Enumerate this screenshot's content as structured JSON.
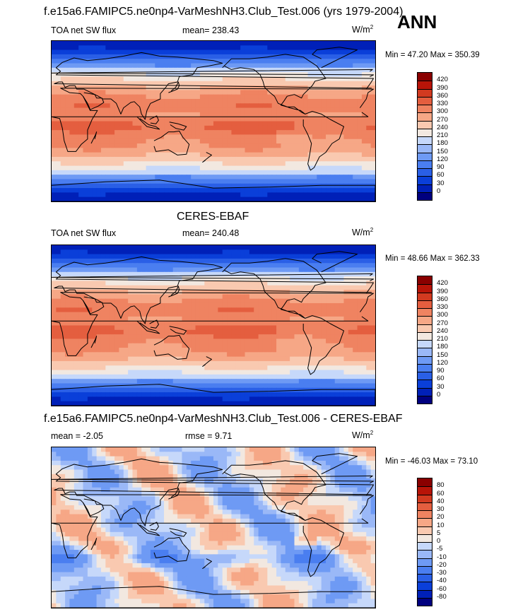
{
  "season": "ANN",
  "panels": [
    {
      "title": "f.e15a6.FAMIPC5.ne0np4-VarMeshNH3.Club_Test.006 (yrs 1979-2004)",
      "left_label": "TOA net SW flux",
      "center_label": "mean= 238.43",
      "units": "W/m",
      "units_sup": "2",
      "min_label": "Min =",
      "min": "47.20",
      "max_label": "Max =",
      "max": "350.39"
    },
    {
      "title": "CERES-EBAF",
      "left_label": "TOA net SW flux",
      "center_label": "mean= 240.48",
      "units": "W/m",
      "units_sup": "2",
      "min_label": "Min =",
      "min": "48.66",
      "max_label": "Max =",
      "max": "362.33"
    },
    {
      "title": "f.e15a6.FAMIPC5.ne0np4-VarMeshNH3.Club_Test.006 - CERES-EBAF",
      "left_label": "mean =  -2.05",
      "center_label": "rmse =   9.71",
      "units": "W/m",
      "units_sup": "2",
      "min_label": "Min =",
      "min": "-46.03",
      "max_label": "Max =",
      "max": "73.10"
    }
  ],
  "chart_data": [
    {
      "type": "heatmap",
      "title": "f.e15a6.FAMIPC5.ne0np4-VarMeshNH3.Club_Test.006 (yrs 1979-2004)",
      "variable": "TOA net SW flux",
      "units": "W/m2",
      "mean": 238.43,
      "min": 47.2,
      "max": 350.39,
      "colorbar_levels": [
        0,
        30,
        60,
        90,
        120,
        150,
        180,
        210,
        240,
        270,
        300,
        330,
        360,
        390,
        420
      ],
      "colorbar_colors": [
        "#00007f",
        "#0020b8",
        "#0a3fd9",
        "#2a5fe6",
        "#4a7ef0",
        "#6e9af4",
        "#9ab8f7",
        "#c6d8fa",
        "#f2e8e0",
        "#f9c9b0",
        "#f6a786",
        "#ef8361",
        "#e45e3f",
        "#d23a20",
        "#b81408",
        "#8a0000"
      ]
    },
    {
      "type": "heatmap",
      "title": "CERES-EBAF",
      "variable": "TOA net SW flux",
      "units": "W/m2",
      "mean": 240.48,
      "min": 48.66,
      "max": 362.33,
      "colorbar_levels": [
        0,
        30,
        60,
        90,
        120,
        150,
        180,
        210,
        240,
        270,
        300,
        330,
        360,
        390,
        420
      ],
      "colorbar_colors": [
        "#00007f",
        "#0020b8",
        "#0a3fd9",
        "#2a5fe6",
        "#4a7ef0",
        "#6e9af4",
        "#9ab8f7",
        "#c6d8fa",
        "#f2e8e0",
        "#f9c9b0",
        "#f6a786",
        "#ef8361",
        "#e45e3f",
        "#d23a20",
        "#b81408",
        "#8a0000"
      ]
    },
    {
      "type": "heatmap",
      "title": "f.e15a6.FAMIPC5.ne0np4-VarMeshNH3.Club_Test.006 - CERES-EBAF",
      "variable": "TOA net SW flux difference",
      "units": "W/m2",
      "mean": -2.05,
      "rmse": 9.71,
      "min": -46.03,
      "max": 73.1,
      "colorbar_levels": [
        -80,
        -60,
        -40,
        -30,
        -20,
        -10,
        -5,
        0,
        5,
        10,
        20,
        30,
        40,
        60,
        80
      ],
      "colorbar_colors": [
        "#00007f",
        "#0020b8",
        "#0a3fd9",
        "#2a5fe6",
        "#4a7ef0",
        "#6e9af4",
        "#9ab8f7",
        "#c6d8fa",
        "#f2e8e0",
        "#f9c9b0",
        "#f6a786",
        "#ef8361",
        "#e45e3f",
        "#d23a20",
        "#b81408",
        "#8a0000"
      ]
    }
  ]
}
